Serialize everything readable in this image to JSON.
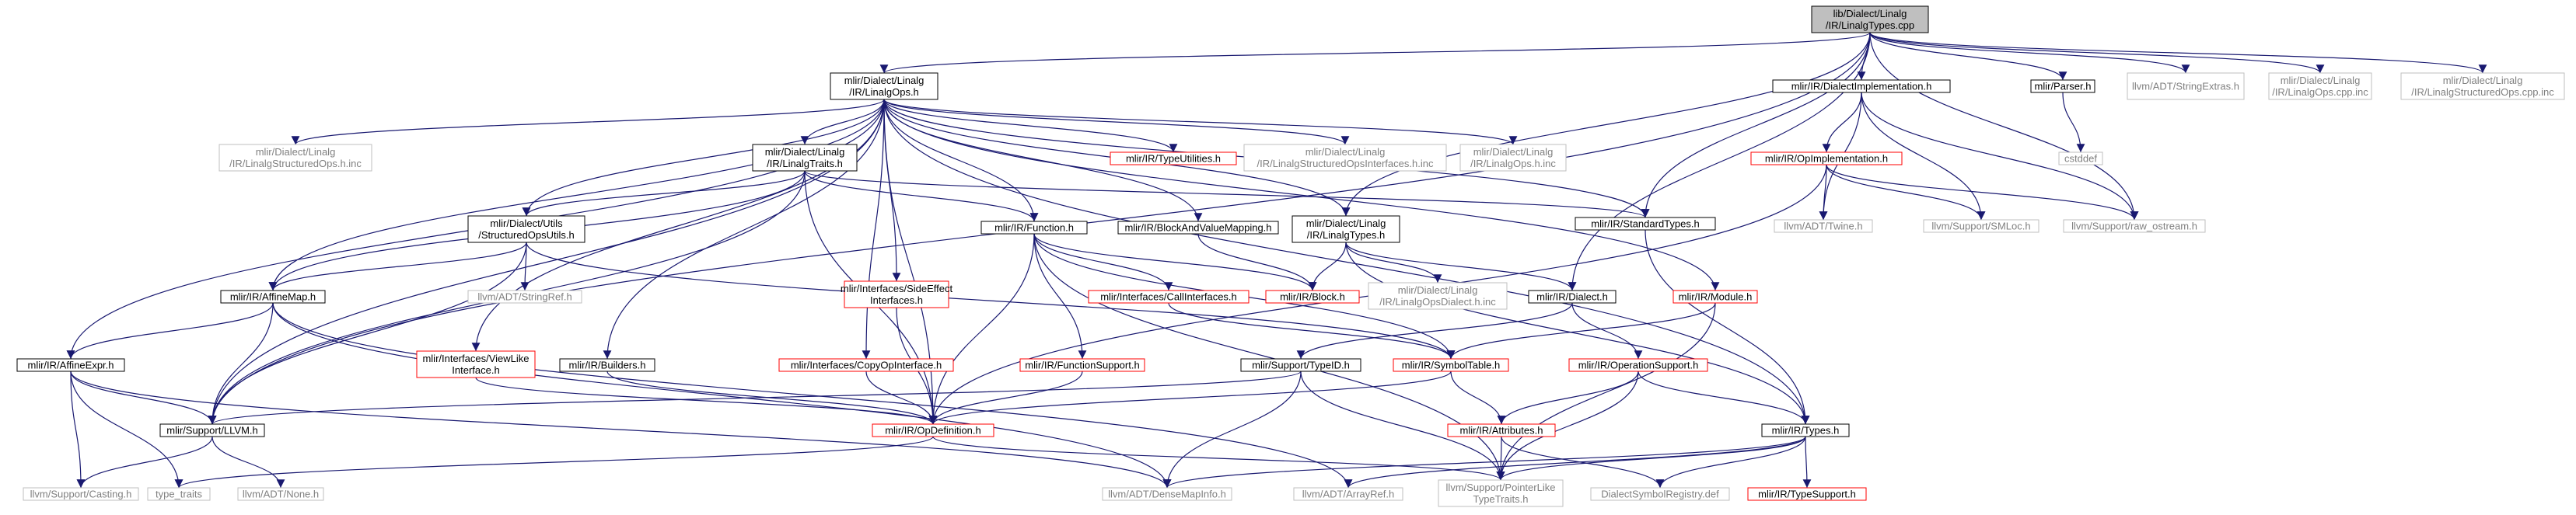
{
  "diagram": {
    "type": "include-dependency-graph",
    "colors": {
      "edge": "#191970",
      "highlight_fill": "#bfbfbf",
      "red_border": "#ff0000",
      "black_border": "#000000",
      "missing_border": "#bfbfbf",
      "missing_text": "#808080"
    },
    "nodes": [
      {
        "id": "root",
        "lines": [
          "lib/Dialect/Linalg",
          "/IR/LinalgTypes.cpp"
        ],
        "style": "root"
      },
      {
        "id": "linalgops_h",
        "lines": [
          "mlir/Dialect/Linalg",
          "/IR/LinalgOps.h"
        ],
        "style": "black"
      },
      {
        "id": "dialectimpl_h",
        "lines": [
          "mlir/IR/DialectImplementation.h"
        ],
        "style": "black"
      },
      {
        "id": "parser_h",
        "lines": [
          "mlir/Parser.h"
        ],
        "style": "black"
      },
      {
        "id": "stringextras_h",
        "lines": [
          "llvm/ADT/StringExtras.h"
        ],
        "style": "missing"
      },
      {
        "id": "linalgops_cpp_inc",
        "lines": [
          "mlir/Dialect/Linalg",
          "/IR/LinalgOps.cpp.inc"
        ],
        "style": "missing"
      },
      {
        "id": "linalgstructuredops_cpp_inc",
        "lines": [
          "mlir/Dialect/Linalg",
          "/IR/LinalgStructuredOps.cpp.inc"
        ],
        "style": "missing"
      },
      {
        "id": "linalgstructuredops_h_inc",
        "lines": [
          "mlir/Dialect/Linalg",
          "/IR/LinalgStructuredOps.h.inc"
        ],
        "style": "missing"
      },
      {
        "id": "linalgtraits_h",
        "lines": [
          "mlir/Dialect/Linalg",
          "/IR/LinalgTraits.h"
        ],
        "style": "black"
      },
      {
        "id": "typeutilities_h",
        "lines": [
          "mlir/IR/TypeUtilities.h"
        ],
        "style": "red"
      },
      {
        "id": "structuredopsinterfaces_h_inc",
        "lines": [
          "mlir/Dialect/Linalg",
          "/IR/LinalgStructuredOpsInterfaces.h.inc"
        ],
        "style": "missing"
      },
      {
        "id": "linalgops_h_inc",
        "lines": [
          "mlir/Dialect/Linalg",
          "/IR/LinalgOps.h.inc"
        ],
        "style": "missing"
      },
      {
        "id": "opimplementation_h",
        "lines": [
          "mlir/IR/OpImplementation.h"
        ],
        "style": "red"
      },
      {
        "id": "cstddef",
        "lines": [
          "cstddef"
        ],
        "style": "missing"
      },
      {
        "id": "structuredopsutils_h",
        "lines": [
          "mlir/Dialect/Utils",
          "/StructuredOpsUtils.h"
        ],
        "style": "black"
      },
      {
        "id": "function_h",
        "lines": [
          "mlir/IR/Function.h"
        ],
        "style": "black"
      },
      {
        "id": "blockandvaluemapping_h",
        "lines": [
          "mlir/IR/BlockAndValueMapping.h"
        ],
        "style": "black"
      },
      {
        "id": "linalgtypes_h",
        "lines": [
          "mlir/Dialect/Linalg",
          "/IR/LinalgTypes.h"
        ],
        "style": "black"
      },
      {
        "id": "standardtypes_h",
        "lines": [
          "mlir/IR/StandardTypes.h"
        ],
        "style": "black"
      },
      {
        "id": "twine_h",
        "lines": [
          "llvm/ADT/Twine.h"
        ],
        "style": "missing"
      },
      {
        "id": "smloc_h",
        "lines": [
          "llvm/Support/SMLoc.h"
        ],
        "style": "missing"
      },
      {
        "id": "raw_ostream_h",
        "lines": [
          "llvm/Support/raw_ostream.h"
        ],
        "style": "missing"
      },
      {
        "id": "affinemap_h",
        "lines": [
          "mlir/IR/AffineMap.h"
        ],
        "style": "black"
      },
      {
        "id": "stringref_h",
        "lines": [
          "llvm/ADT/StringRef.h"
        ],
        "style": "missing"
      },
      {
        "id": "sideeffectinterfaces_h",
        "lines": [
          "mlir/Interfaces/SideEffect",
          "Interfaces.h"
        ],
        "style": "red"
      },
      {
        "id": "callinterfaces_h",
        "lines": [
          "mlir/Interfaces/CallInterfaces.h"
        ],
        "style": "red"
      },
      {
        "id": "block_h",
        "lines": [
          "mlir/IR/Block.h"
        ],
        "style": "red"
      },
      {
        "id": "linalgopsdialect_h_inc",
        "lines": [
          "mlir/Dialect/Linalg",
          "/IR/LinalgOpsDialect.h.inc"
        ],
        "style": "missing"
      },
      {
        "id": "dialect_h",
        "lines": [
          "mlir/IR/Dialect.h"
        ],
        "style": "black"
      },
      {
        "id": "module_h",
        "lines": [
          "mlir/IR/Module.h"
        ],
        "style": "red"
      },
      {
        "id": "affineexpr_h",
        "lines": [
          "mlir/IR/AffineExpr.h"
        ],
        "style": "black"
      },
      {
        "id": "viewlikeinterface_h",
        "lines": [
          "mlir/Interfaces/ViewLike",
          "Interface.h"
        ],
        "style": "red"
      },
      {
        "id": "builders_h",
        "lines": [
          "mlir/IR/Builders.h"
        ],
        "style": "black"
      },
      {
        "id": "copyopinterface_h",
        "lines": [
          "mlir/Interfaces/CopyOpInterface.h"
        ],
        "style": "red"
      },
      {
        "id": "functionsupport_h",
        "lines": [
          "mlir/IR/FunctionSupport.h"
        ],
        "style": "red"
      },
      {
        "id": "typeid_h",
        "lines": [
          "mlir/Support/TypeID.h"
        ],
        "style": "black"
      },
      {
        "id": "symboltable_h",
        "lines": [
          "mlir/IR/SymbolTable.h"
        ],
        "style": "red"
      },
      {
        "id": "operationsupport_h",
        "lines": [
          "mlir/IR/OperationSupport.h"
        ],
        "style": "red"
      },
      {
        "id": "llvm_h",
        "lines": [
          "mlir/Support/LLVM.h"
        ],
        "style": "black"
      },
      {
        "id": "opdefinition_h",
        "lines": [
          "mlir/IR/OpDefinition.h"
        ],
        "style": "red"
      },
      {
        "id": "attributes_h",
        "lines": [
          "mlir/IR/Attributes.h"
        ],
        "style": "red"
      },
      {
        "id": "types_h",
        "lines": [
          "mlir/IR/Types.h"
        ],
        "style": "black"
      },
      {
        "id": "casting_h",
        "lines": [
          "llvm/Support/Casting.h"
        ],
        "style": "missing"
      },
      {
        "id": "type_traits",
        "lines": [
          "type_traits"
        ],
        "style": "missing"
      },
      {
        "id": "none_h",
        "lines": [
          "llvm/ADT/None.h"
        ],
        "style": "missing"
      },
      {
        "id": "densemapinfo_h",
        "lines": [
          "llvm/ADT/DenseMapInfo.h"
        ],
        "style": "missing"
      },
      {
        "id": "arrayref_h",
        "lines": [
          "llvm/ADT/ArrayRef.h"
        ],
        "style": "missing"
      },
      {
        "id": "pointerliketypetraits_h",
        "lines": [
          "llvm/Support/PointerLike",
          "TypeTraits.h"
        ],
        "style": "missing"
      },
      {
        "id": "dialectsymbolregistry_def",
        "lines": [
          "DialectSymbolRegistry.def"
        ],
        "style": "missing"
      },
      {
        "id": "typesupport_h",
        "lines": [
          "mlir/IR/TypeSupport.h"
        ],
        "style": "red"
      }
    ]
  }
}
